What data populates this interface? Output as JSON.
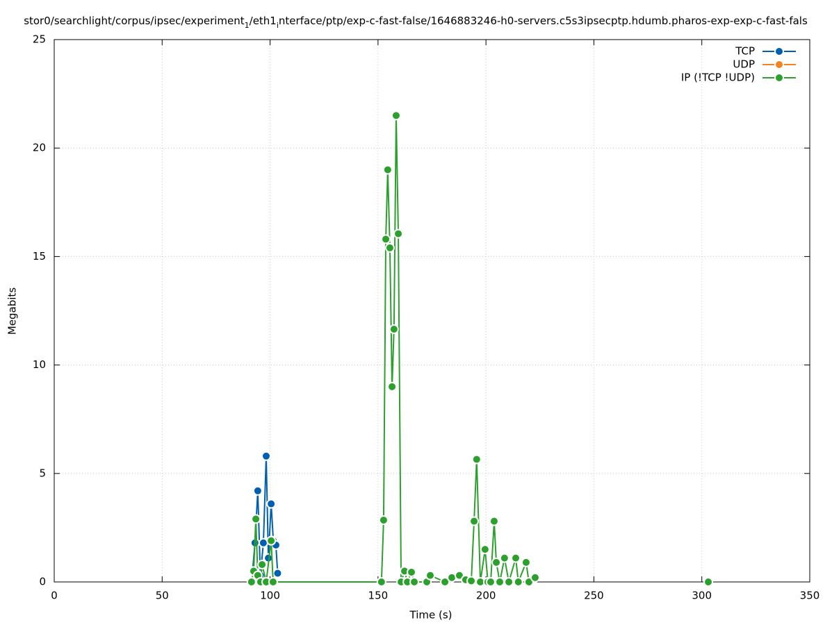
{
  "chart_data": {
    "type": "line",
    "title_segments": [
      {
        "text": "stor0/searchlight/corpus/ipsec/experiment",
        "sub": false
      },
      {
        "text": "1",
        "sub": true
      },
      {
        "text": "/eth1",
        "sub": false
      },
      {
        "text": "i",
        "sub": true
      },
      {
        "text": "nterface/ptp/exp-c-fast-false/1646883246-h0-servers.c5s3ipsecptp.hdumb.pharos-exp-exp-c-fast-fals",
        "sub": false
      }
    ],
    "xlabel": "Time (s)",
    "ylabel": "Megabits",
    "xlim": [
      0,
      350
    ],
    "xticks": [
      0,
      50,
      100,
      150,
      200,
      250,
      300,
      350
    ],
    "ylim": [
      0,
      25
    ],
    "yticks": [
      0,
      5,
      10,
      15,
      20,
      25
    ],
    "grid": true,
    "legend": "top-right",
    "series": [
      {
        "name": "TCP",
        "color": "#005fb0",
        "x": [
          91.9,
          93,
          94.3,
          95.5,
          96.9,
          98.2,
          99.2,
          100.5,
          101.5,
          102.7,
          103.5
        ],
        "values": [
          0.5,
          1.8,
          4.2,
          0.3,
          1.8,
          5.8,
          1.1,
          3.6,
          1.9,
          1.7,
          0.4
        ]
      },
      {
        "name": "UDP",
        "color": "#f5821f",
        "x": [],
        "values": []
      },
      {
        "name": "IP (!TCP  !UDP)",
        "color": "#2ca02c",
        "x": [
          91.4,
          92.4,
          93.4,
          94.3,
          95.6,
          96.3,
          98.2,
          100.5,
          101.4,
          151.6,
          152.6,
          153.6,
          154.5,
          155.5,
          156.5,
          157.4,
          158.4,
          159.4,
          160.7,
          162.3,
          163.6,
          165.5,
          166.8,
          172.6,
          174.2,
          181,
          184.2,
          187.7,
          190.6,
          193.2,
          194.5,
          195.7,
          197.4,
          199.6,
          200.9,
          202.2,
          203.8,
          204.8,
          206.4,
          208.6,
          210.6,
          213.8,
          215,
          218.6,
          219.9,
          222.8,
          null,
          303
        ],
        "values": [
          0,
          0.5,
          2.9,
          0.3,
          0,
          0.8,
          0,
          1.9,
          0,
          0,
          2.85,
          15.8,
          19,
          15.4,
          9,
          11.65,
          21.5,
          16.05,
          0,
          0.5,
          0,
          0.45,
          0,
          0,
          0.3,
          0,
          0.2,
          0.3,
          0.1,
          0.05,
          2.8,
          5.65,
          0,
          1.5,
          0,
          0,
          2.8,
          0.9,
          0,
          1.1,
          0,
          1.1,
          0,
          0.9,
          0,
          0.2,
          null,
          0
        ]
      }
    ]
  }
}
